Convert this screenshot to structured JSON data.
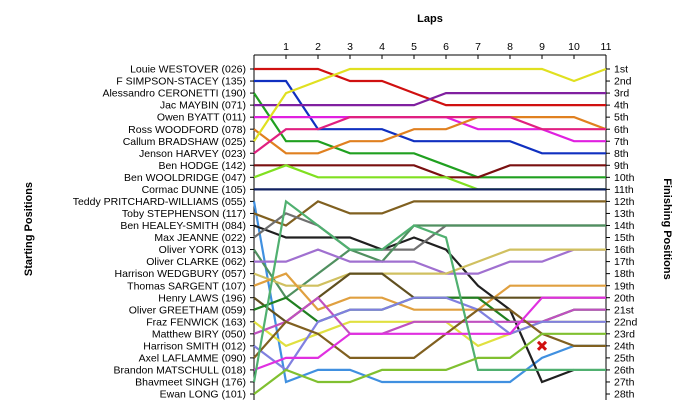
{
  "chart_data": {
    "type": "line",
    "title": "",
    "xlabel": "Laps",
    "ylabel_left": "Starting Positions",
    "ylabel_right": "Finishing Positions",
    "laps": [
      0,
      1,
      2,
      3,
      4,
      5,
      6,
      7,
      8,
      9,
      10,
      11
    ],
    "lap_tick_labels": [
      "1",
      "2",
      "3",
      "4",
      "5",
      "6",
      "7",
      "8",
      "9",
      "10",
      "11"
    ],
    "starting_grid": [
      "Louie WESTOVER (026)",
      "F SIMPSON-STACEY (135)",
      "Alessandro CERONETTI (190)",
      "Jac MAYBIN (071)",
      "Owen BYATT (011)",
      "Ross WOODFORD (078)",
      "Callum BRADSHAW (025)",
      "Jenson HARVEY (023)",
      "Ben HODGE (142)",
      "Ben WOOLDRIDGE (047)",
      "Cormac DUNNE (105)",
      "Teddy PRITCHARD-WILLIAMS (055)",
      "Toby STEPHENSON (117)",
      "Ben HEALEY-SMITH (084)",
      "Max JEANNE (022)",
      "Oliver YORK (013)",
      "Oliver CLARKE (062)",
      "Harrison WEDGBURY (057)",
      "Thomas SARGENT (107)",
      "Henry LAWS (196)",
      "Oliver GREETHAM (059)",
      "Fraz FENWICK (163)",
      "Matthew BIRY (050)",
      "Harrison SMITH (012)",
      "Axel LAFLAMME (090)",
      "Brandon MATSCHULL (018)",
      "Bhavmeet SINGH (176)",
      "Ewan LONG (101)"
    ],
    "finishing_labels": [
      "1st",
      "2nd",
      "3rd",
      "4th",
      "5th",
      "6th",
      "7th",
      "8th",
      "9th",
      "10th",
      "11th",
      "12th",
      "13th",
      "14th",
      "15th",
      "16th",
      "17th",
      "18th",
      "19th",
      "20th",
      "21st",
      "22nd",
      "23rd",
      "24th",
      "25th",
      "26th",
      "27th",
      "28th"
    ],
    "series": [
      {
        "color": "#d01010",
        "positions": [
          1,
          1,
          1,
          2,
          2,
          3,
          4,
          4,
          4,
          4,
          4,
          4
        ]
      },
      {
        "color": "#1030c0",
        "positions": [
          2,
          2,
          6,
          6,
          6,
          7,
          7,
          7,
          7,
          8,
          8,
          8
        ]
      },
      {
        "color": "#20a020",
        "positions": [
          3,
          7,
          7,
          8,
          8,
          8,
          9,
          10,
          10,
          10,
          10,
          10
        ]
      },
      {
        "color": "#8020a0",
        "positions": [
          4,
          4,
          4,
          4,
          4,
          4,
          3,
          3,
          3,
          3,
          3,
          3
        ]
      },
      {
        "color": "#e020e0",
        "positions": [
          5,
          5,
          5,
          5,
          5,
          5,
          5,
          6,
          6,
          6,
          7,
          7
        ]
      },
      {
        "color": "#e08020",
        "positions": [
          6,
          8,
          8,
          7,
          7,
          6,
          6,
          5,
          5,
          5,
          5,
          6
        ]
      },
      {
        "color": "#e0e020",
        "positions": [
          7,
          3,
          2,
          1,
          1,
          1,
          1,
          1,
          1,
          1,
          2,
          1
        ]
      },
      {
        "color": "#e02080",
        "positions": [
          8,
          6,
          6,
          5,
          5,
          5,
          5,
          5,
          5,
          6,
          6,
          6
        ]
      },
      {
        "color": "#7a1010",
        "positions": [
          9,
          9,
          9,
          9,
          9,
          9,
          10,
          10,
          9,
          9,
          9,
          9
        ]
      },
      {
        "color": "#80e020",
        "positions": [
          10,
          9,
          10,
          10,
          10,
          10,
          10,
          11,
          11,
          11,
          11,
          11
        ]
      },
      {
        "color": "#102060",
        "positions": [
          11,
          11,
          11,
          11,
          11,
          11,
          11,
          11,
          11,
          11,
          11,
          11
        ]
      },
      {
        "color": "#4090e0",
        "positions": [
          12,
          27,
          26,
          26,
          27,
          27,
          27,
          27,
          27,
          25,
          24,
          24
        ]
      },
      {
        "color": "#806020",
        "positions": [
          13,
          14,
          12,
          13,
          13,
          12,
          12,
          12,
          12,
          12,
          12,
          12
        ]
      },
      {
        "color": "#202020",
        "positions": [
          14,
          15,
          15,
          15,
          16,
          15,
          16,
          19,
          21,
          27,
          26
        ]
      },
      {
        "color": "#707070",
        "positions": [
          15,
          13,
          14,
          16,
          16,
          16,
          14,
          14,
          14,
          14,
          14,
          14
        ]
      },
      {
        "color": "#509060",
        "positions": [
          16,
          20,
          18,
          16,
          17,
          14,
          14,
          14,
          14,
          14,
          14,
          14
        ]
      },
      {
        "color": "#a070d0",
        "positions": [
          17,
          17,
          16,
          17,
          17,
          17,
          18,
          18,
          17,
          17,
          16,
          16
        ]
      },
      {
        "color": "#d0c060",
        "positions": [
          18,
          19,
          19,
          18,
          18,
          18,
          18,
          17,
          16,
          16,
          16,
          16
        ]
      },
      {
        "color": "#e0a040",
        "positions": [
          19,
          18,
          21,
          20,
          20,
          21,
          21,
          21,
          19,
          19,
          19,
          19
        ]
      },
      {
        "color": "#605020",
        "positions": [
          20,
          22,
          20,
          18,
          18,
          20,
          20,
          20,
          20,
          20,
          20,
          20
        ]
      },
      {
        "color": "#208020",
        "positions": [
          21,
          20,
          22,
          21,
          21,
          20,
          20,
          20,
          22,
          22,
          21,
          21
        ]
      },
      {
        "color": "#e0e040",
        "positions": [
          22,
          24,
          23,
          22,
          22,
          22,
          22,
          24,
          23,
          22,
          22,
          22
        ]
      },
      {
        "color": "#c050c0",
        "positions": [
          23,
          22,
          20,
          23,
          23,
          22,
          22,
          22,
          22,
          22,
          21,
          21
        ]
      },
      {
        "color": "#8080e0",
        "positions": [
          24,
          26,
          22,
          21,
          21,
          20,
          20,
          21,
          23,
          22,
          22,
          22
        ]
      },
      {
        "color": "#806020",
        "positions": [
          25,
          22,
          23,
          25,
          25,
          25,
          23,
          21,
          21,
          23,
          24,
          24
        ]
      },
      {
        "color": "#e030e0",
        "positions": [
          26,
          25,
          25,
          23,
          23,
          23,
          23,
          23,
          23,
          20,
          20,
          20
        ]
      },
      {
        "color": "#50b070",
        "positions": [
          27,
          12,
          14,
          16,
          16,
          14,
          15,
          26,
          26,
          26,
          26,
          26
        ]
      },
      {
        "color": "#80c030",
        "positions": [
          28,
          26,
          27,
          27,
          26,
          26,
          26,
          25,
          25,
          23,
          23,
          23
        ]
      }
    ],
    "markers": [
      {
        "type": "cross",
        "color": "#d01010",
        "lap": 9,
        "position": 24
      }
    ],
    "grid": false,
    "xlim": [
      0,
      11
    ],
    "ylim": [
      1,
      28
    ]
  }
}
